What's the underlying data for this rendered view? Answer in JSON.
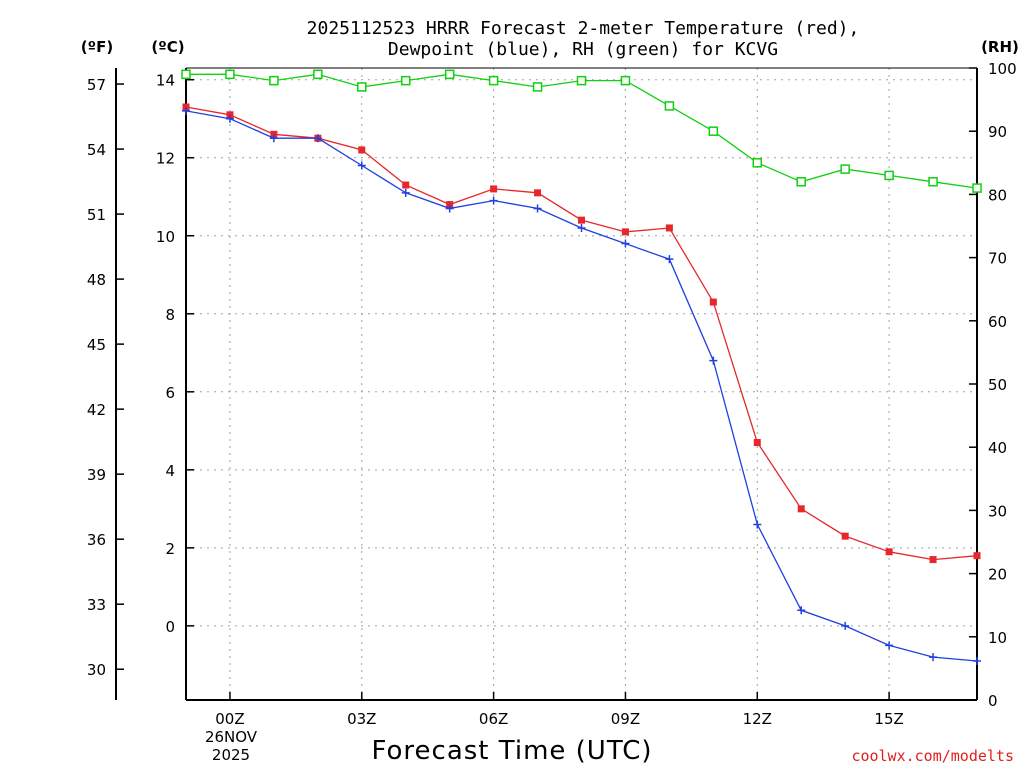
{
  "colors": {
    "temperature": "#e8272b",
    "dewpoint": "#2040e0",
    "rh": "#10d010",
    "grid": "#a0a0a0"
  },
  "chart_data": {
    "type": "line",
    "title": [
      "2025112523 HRRR Forecast 2-meter Temperature (red),",
      "Dewpoint (blue), RH (green) for KCVG"
    ],
    "xlabel": "Forecast Time (UTC)",
    "x_hours": [
      -1,
      0,
      1,
      2,
      3,
      4,
      5,
      6,
      7,
      8,
      9,
      10,
      11,
      12,
      13,
      14,
      15,
      16,
      17
    ],
    "x_range": [
      -1,
      17
    ],
    "x_ticks": [
      {
        "hour": 0,
        "label": "00Z"
      },
      {
        "hour": 3,
        "label": "03Z"
      },
      {
        "hour": 6,
        "label": "06Z"
      },
      {
        "hour": 9,
        "label": "09Z"
      },
      {
        "hour": 12,
        "label": "12Z"
      },
      {
        "hour": 15,
        "label": "15Z"
      }
    ],
    "date_label": [
      "26NOV",
      "2025"
    ],
    "left_axis_c": {
      "unit": "(ºC)",
      "range": [
        -1.9,
        14.3
      ],
      "ticks": [
        0,
        2,
        4,
        6,
        8,
        10,
        12,
        14
      ]
    },
    "left_axis_f": {
      "unit": "(ºF)",
      "ticks": [
        30,
        33,
        36,
        39,
        42,
        45,
        48,
        51,
        54,
        57
      ]
    },
    "right_axis": {
      "unit": "(RH)",
      "range": [
        0,
        100
      ],
      "ticks": [
        0,
        10,
        20,
        30,
        40,
        50,
        60,
        70,
        80,
        90,
        100
      ]
    },
    "series": [
      {
        "name": "Temperature",
        "axis": "left_c",
        "values": [
          13.3,
          13.1,
          12.6,
          12.5,
          12.2,
          11.3,
          10.8,
          11.2,
          11.1,
          10.4,
          10.1,
          10.2,
          8.3,
          4.7,
          3.0,
          2.3,
          1.9,
          1.7,
          1.8
        ]
      },
      {
        "name": "Dewpoint",
        "axis": "left_c",
        "values": [
          13.2,
          13.0,
          12.5,
          12.5,
          11.8,
          11.1,
          10.7,
          10.9,
          10.7,
          10.2,
          9.8,
          9.4,
          6.8,
          2.6,
          0.4,
          0.0,
          -0.5,
          -0.8,
          -0.9
        ]
      },
      {
        "name": "RH",
        "axis": "right",
        "values": [
          99,
          99,
          98,
          99,
          97,
          98,
          99,
          98,
          97,
          98,
          98,
          94,
          90,
          85,
          82,
          84,
          83,
          82,
          81
        ]
      }
    ],
    "credit": "coolwx.com/modelts"
  }
}
